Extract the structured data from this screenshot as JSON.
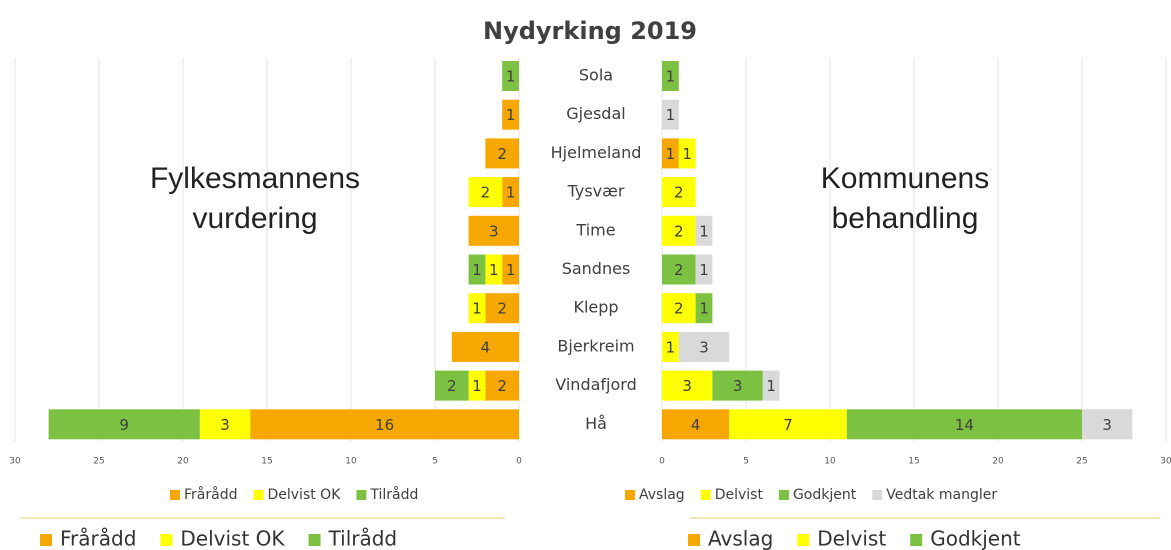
{
  "chart_data": [
    {
      "type": "bar",
      "orientation": "horizontal",
      "title": "Nydyrking 2019",
      "annotation": [
        "Fylkesmannens",
        "vurdering"
      ],
      "categories": [
        "Sola",
        "Gjesdal",
        "Hjelmeland",
        "Tysvær",
        "Time",
        "Sandnes",
        "Klepp",
        "Bjerkreim",
        "Vindafjord",
        "Hå"
      ],
      "series": [
        {
          "name": "Frårådd",
          "color": "#f7a800",
          "values": [
            null,
            1,
            2,
            1,
            3,
            1,
            2,
            4,
            2,
            16
          ]
        },
        {
          "name": "Delvist OK",
          "color": "#ffff00",
          "values": [
            null,
            null,
            null,
            2,
            null,
            1,
            1,
            null,
            1,
            3
          ]
        },
        {
          "name": "Tilrådd",
          "color": "#7cc142",
          "values": [
            1,
            null,
            null,
            null,
            null,
            1,
            null,
            null,
            2,
            9
          ]
        }
      ],
      "xlim": [
        0,
        30
      ],
      "xticks": [
        0,
        5,
        10,
        15,
        20,
        25,
        30
      ],
      "reversed": true,
      "grid": true
    },
    {
      "type": "bar",
      "orientation": "horizontal",
      "annotation": [
        "Kommunens",
        "behandling"
      ],
      "series": [
        {
          "name": "Avslag",
          "color": "#f7a800",
          "values": [
            null,
            null,
            1,
            null,
            null,
            null,
            null,
            null,
            null,
            4
          ]
        },
        {
          "name": "Delvist",
          "color": "#ffff00",
          "values": [
            null,
            null,
            1,
            2,
            2,
            null,
            2,
            1,
            3,
            7
          ]
        },
        {
          "name": "Godkjent",
          "color": "#7cc142",
          "values": [
            1,
            null,
            null,
            null,
            null,
            2,
            1,
            null,
            3,
            14
          ]
        },
        {
          "name": "Vedtak mangler",
          "color": "#d9d9d9",
          "values": [
            null,
            1,
            null,
            null,
            1,
            1,
            null,
            3,
            1,
            3
          ]
        }
      ],
      "xlim": [
        0,
        30
      ],
      "xticks": [
        0,
        5,
        10,
        15,
        20,
        25,
        30
      ],
      "reversed": false,
      "grid": true
    }
  ]
}
